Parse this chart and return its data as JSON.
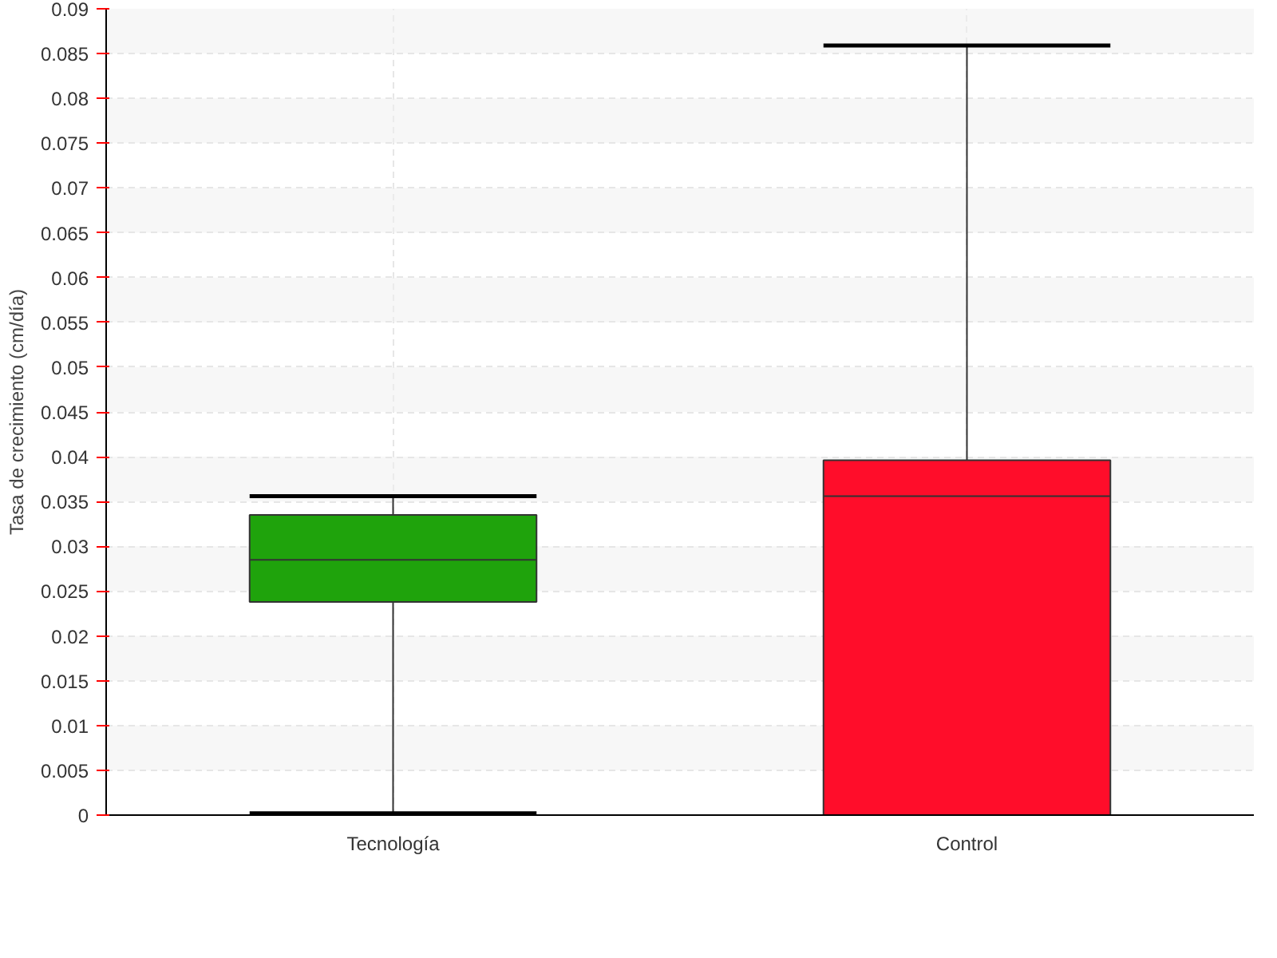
{
  "chart_data": {
    "type": "box",
    "ylabel": "Tasa de crecimiento (cm/día)",
    "categories": [
      "Tecnología",
      "Control"
    ],
    "colors": [
      "#1fa30c",
      "#ff0d2a"
    ],
    "boxes": [
      {
        "low": 0.0002,
        "q1": 0.0238,
        "median": 0.0285,
        "q3": 0.0335,
        "high": 0.0356
      },
      {
        "low": 0.0,
        "q1": 0.0,
        "median": 0.0356,
        "q3": 0.0396,
        "high": 0.0859
      }
    ],
    "ylim": [
      0,
      0.09
    ],
    "yticks": [
      0,
      0.005,
      0.01,
      0.015,
      0.02,
      0.025,
      0.03,
      0.035,
      0.04,
      0.045,
      0.05,
      0.055,
      0.06,
      0.065,
      0.07,
      0.075,
      0.08,
      0.085,
      0.09
    ],
    "grid": true
  }
}
